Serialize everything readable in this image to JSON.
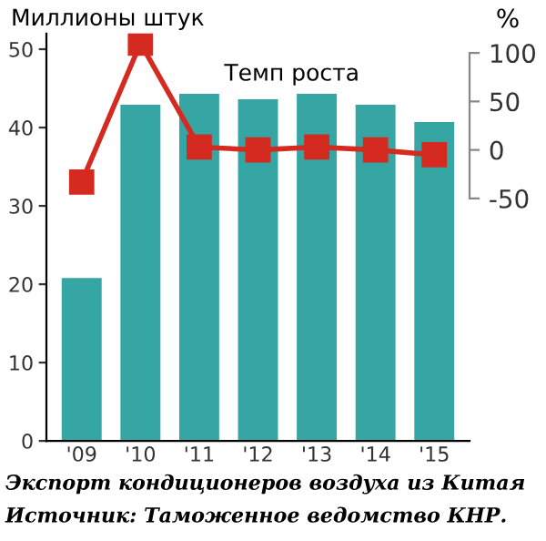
{
  "chart_data": {
    "type": "bar",
    "ylabel": "Миллионы штук",
    "y2label": "%",
    "categories": [
      "'09",
      "'10",
      "'11",
      "'12",
      "'13",
      "'14",
      "'15"
    ],
    "series": [
      {
        "color": "#35a6a4",
        "values": [
          20.8,
          42.9,
          44.3,
          43.6,
          44.3,
          42.9,
          40.7
        ]
      },
      {
        "type": "line",
        "axis": "y2",
        "color": "#d42a1f",
        "marker": "square",
        "values": [
          -33,
          110,
          3,
          0,
          3,
          0,
          -5
        ]
      }
    ],
    "ylim": [
      0,
      52
    ],
    "yticks": [
      0,
      10,
      20,
      30,
      40,
      50
    ],
    "y2lim": [
      -300,
      120
    ],
    "y2ticks": [
      -50,
      0,
      50,
      100
    ],
    "grid": false,
    "legend": false,
    "annotations": [
      "Темп роста",
      "Экспорт кондиционеров воздуха из Китая",
      "Источник: Таможенное ведомство КНР."
    ]
  }
}
